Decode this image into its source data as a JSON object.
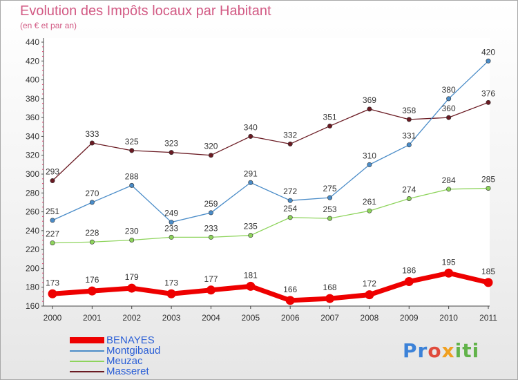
{
  "header": {
    "title": "Evolution des Impôts locaux par Habitant",
    "subtitle": "(en € et par an)"
  },
  "logo": {
    "text": "Proxiti"
  },
  "colors": {
    "BENAYES": "#ee0000",
    "Montgibaud": "#4a8cc8",
    "Meuzac": "#8ed45c",
    "Masseret": "#6a1a22",
    "title": "#d25a84",
    "legend_text": "#2b5fd6"
  },
  "chart_data": {
    "type": "line",
    "title": "Evolution des Impôts locaux par Habitant",
    "subtitle": "(en € et par an)",
    "x": [
      "2000",
      "2001",
      "2002",
      "2003",
      "2004",
      "2005",
      "2006",
      "2007",
      "2008",
      "2009",
      "2010",
      "2011"
    ],
    "ylim": [
      160,
      440
    ],
    "yticks": [
      160,
      180,
      200,
      220,
      240,
      260,
      280,
      300,
      320,
      340,
      360,
      380,
      400,
      420,
      440
    ],
    "grid": false,
    "legend_position": "bottom-left",
    "series": [
      {
        "name": "BENAYES",
        "values": [
          173,
          176,
          179,
          173,
          177,
          181,
          166,
          168,
          172,
          186,
          195,
          185
        ]
      },
      {
        "name": "Montgibaud",
        "values": [
          251,
          270,
          288,
          249,
          259,
          291,
          272,
          275,
          310,
          331,
          380,
          420
        ]
      },
      {
        "name": "Meuzac",
        "values": [
          227,
          228,
          230,
          233,
          233,
          235,
          254,
          253,
          261,
          274,
          284,
          285
        ]
      },
      {
        "name": "Masseret",
        "values": [
          293,
          333,
          325,
          323,
          320,
          340,
          332,
          351,
          369,
          358,
          360,
          376
        ]
      }
    ]
  }
}
